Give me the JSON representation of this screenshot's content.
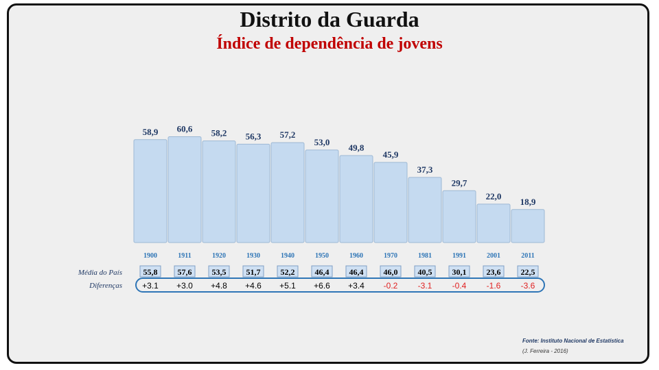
{
  "title": "Distrito da Guarda",
  "subtitle": "Índice de dependência de jovens",
  "row_labels": {
    "country_avg": "Média do País",
    "differences": "Diferenças"
  },
  "source": "Fonte: Instituto Nacional de Estatística",
  "author": "(J. Ferreira - 2016)",
  "colors": {
    "bar_fill": "#c5daf0",
    "bar_stroke": "#9db8d4",
    "value_label": "#1f3864",
    "year_label": "#2e75b6",
    "negative": "#e02020",
    "frame_border": "#2e75b6"
  },
  "chart_data": {
    "type": "bar",
    "categories": [
      "1900",
      "1911",
      "1920",
      "1930",
      "1940",
      "1950",
      "1960",
      "1970",
      "1981",
      "1991",
      "2001",
      "2011"
    ],
    "values": [
      58.9,
      60.6,
      58.2,
      56.3,
      57.2,
      53.0,
      49.8,
      45.9,
      37.3,
      29.7,
      22.0,
      18.9
    ],
    "value_labels": [
      "58,9",
      "60,6",
      "58,2",
      "56,3",
      "57,2",
      "53,0",
      "49,8",
      "45,9",
      "37,3",
      "29,7",
      "22,0",
      "18,9"
    ],
    "country_avg_labels": [
      "55,8",
      "57,6",
      "53,5",
      "51,7",
      "52,2",
      "46,4",
      "46,4",
      "46,0",
      "40,5",
      "30,1",
      "23,6",
      "22,5"
    ],
    "differences": [
      "+3.1",
      "+3.0",
      "+4.8",
      "+4.6",
      "+5.1",
      "+6.6",
      "+3.4",
      "-0.2",
      "-3.1",
      "-0.4",
      "-1.6",
      "-3.6"
    ],
    "grid": false,
    "legend": "none"
  }
}
